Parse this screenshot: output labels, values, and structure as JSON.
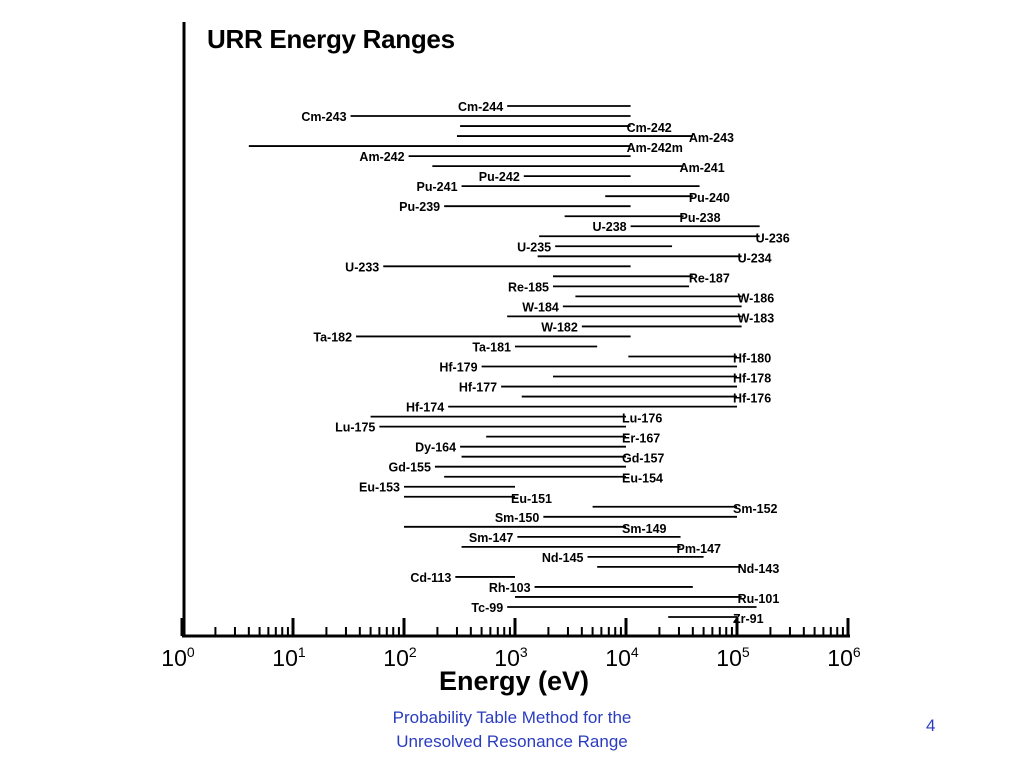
{
  "slide": {
    "title": "URR Energy Ranges",
    "footer_line1": "Probability Table Method for the",
    "footer_line2": "Unresolved Resonance Range",
    "page_number": "4"
  },
  "chart_data": {
    "type": "range-bar",
    "title": "URR Energy Ranges",
    "xlabel": "Energy (eV)",
    "xscale": "log",
    "xlim": [
      1,
      1000000
    ],
    "x_ticks": [
      {
        "base": "10",
        "exp": "0"
      },
      {
        "base": "10",
        "exp": "1"
      },
      {
        "base": "10",
        "exp": "2"
      },
      {
        "base": "10",
        "exp": "3"
      },
      {
        "base": "10",
        "exp": "4"
      },
      {
        "base": "10",
        "exp": "5"
      },
      {
        "base": "10",
        "exp": "6"
      }
    ],
    "ranges": [
      {
        "label": "Cm-244",
        "x0": 850,
        "x1": 11000,
        "label_side": "left"
      },
      {
        "label": "Cm-243",
        "x0": 33,
        "x1": 11000,
        "label_side": "left"
      },
      {
        "label": "Cm-242",
        "x0": 320,
        "x1": 11000,
        "label_side": "right"
      },
      {
        "label": "Am-243",
        "x0": 300,
        "x1": 40000,
        "label_side": "right"
      },
      {
        "label": "Am-242m",
        "x0": 4,
        "x1": 11000,
        "label_side": "right"
      },
      {
        "label": "Am-242",
        "x0": 110,
        "x1": 11000,
        "label_side": "left"
      },
      {
        "label": "Am-241",
        "x0": 180,
        "x1": 33000,
        "label_side": "right"
      },
      {
        "label": "Pu-242",
        "x0": 1200,
        "x1": 11000,
        "label_side": "left"
      },
      {
        "label": "Pu-241",
        "x0": 330,
        "x1": 46000,
        "label_side": "left"
      },
      {
        "label": "Pu-240",
        "x0": 6500,
        "x1": 40000,
        "label_side": "right"
      },
      {
        "label": "Pu-239",
        "x0": 230,
        "x1": 11000,
        "label_side": "left"
      },
      {
        "label": "Pu-238",
        "x0": 2800,
        "x1": 33000,
        "label_side": "right"
      },
      {
        "label": "U-238",
        "x0": 11000,
        "x1": 160000,
        "label_side": "left"
      },
      {
        "label": "U-236",
        "x0": 1650,
        "x1": 160000,
        "label_side": "right"
      },
      {
        "label": "U-235",
        "x0": 2300,
        "x1": 26000,
        "label_side": "left"
      },
      {
        "label": "U-234",
        "x0": 1600,
        "x1": 110000,
        "label_side": "right"
      },
      {
        "label": "U-233",
        "x0": 65,
        "x1": 11000,
        "label_side": "left"
      },
      {
        "label": "Re-187",
        "x0": 2200,
        "x1": 40000,
        "label_side": "right"
      },
      {
        "label": "Re-185",
        "x0": 2200,
        "x1": 37000,
        "label_side": "left"
      },
      {
        "label": "W-186",
        "x0": 3500,
        "x1": 110000,
        "label_side": "right"
      },
      {
        "label": "W-184",
        "x0": 2700,
        "x1": 110000,
        "label_side": "left"
      },
      {
        "label": "W-183",
        "x0": 850,
        "x1": 110000,
        "label_side": "right"
      },
      {
        "label": "W-182",
        "x0": 4000,
        "x1": 110000,
        "label_side": "left"
      },
      {
        "label": "Ta-182",
        "x0": 37,
        "x1": 11000,
        "label_side": "left"
      },
      {
        "label": "Ta-181",
        "x0": 1000,
        "x1": 5500,
        "label_side": "left"
      },
      {
        "label": "Hf-180",
        "x0": 10500,
        "x1": 100000,
        "label_side": "right"
      },
      {
        "label": "Hf-179",
        "x0": 500,
        "x1": 100000,
        "label_side": "left"
      },
      {
        "label": "Hf-178",
        "x0": 2200,
        "x1": 100000,
        "label_side": "right"
      },
      {
        "label": "Hf-177",
        "x0": 750,
        "x1": 100000,
        "label_side": "left"
      },
      {
        "label": "Hf-176",
        "x0": 1150,
        "x1": 100000,
        "label_side": "right"
      },
      {
        "label": "Hf-174",
        "x0": 250,
        "x1": 100000,
        "label_side": "left"
      },
      {
        "label": "Lu-176",
        "x0": 50,
        "x1": 10000,
        "label_side": "right"
      },
      {
        "label": "Lu-175",
        "x0": 60,
        "x1": 10000,
        "label_side": "left"
      },
      {
        "label": "Er-167",
        "x0": 550,
        "x1": 10000,
        "label_side": "right"
      },
      {
        "label": "Dy-164",
        "x0": 320,
        "x1": 10000,
        "label_side": "left"
      },
      {
        "label": "Gd-157",
        "x0": 330,
        "x1": 10000,
        "label_side": "right"
      },
      {
        "label": "Gd-155",
        "x0": 190,
        "x1": 10000,
        "label_side": "left"
      },
      {
        "label": "Eu-154",
        "x0": 230,
        "x1": 10000,
        "label_side": "right"
      },
      {
        "label": "Eu-153",
        "x0": 100,
        "x1": 1000,
        "label_side": "left"
      },
      {
        "label": "Eu-151",
        "x0": 100,
        "x1": 1000,
        "label_side": "right"
      },
      {
        "label": "Sm-152",
        "x0": 5000,
        "x1": 100000,
        "label_side": "right"
      },
      {
        "label": "Sm-150",
        "x0": 1800,
        "x1": 100000,
        "label_side": "left"
      },
      {
        "label": "Sm-149",
        "x0": 100,
        "x1": 10000,
        "label_side": "right"
      },
      {
        "label": "Sm-147",
        "x0": 1050,
        "x1": 31000,
        "label_side": "left"
      },
      {
        "label": "Pm-147",
        "x0": 330,
        "x1": 31000,
        "label_side": "right"
      },
      {
        "label": "Nd-145",
        "x0": 4500,
        "x1": 50000,
        "label_side": "left"
      },
      {
        "label": "Nd-143",
        "x0": 5500,
        "x1": 110000,
        "label_side": "right"
      },
      {
        "label": "Cd-113",
        "x0": 290,
        "x1": 1000,
        "label_side": "left"
      },
      {
        "label": "Rh-103",
        "x0": 1500,
        "x1": 40000,
        "label_side": "left"
      },
      {
        "label": "Ru-101",
        "x0": 1000,
        "x1": 110000,
        "label_side": "right"
      },
      {
        "label": "Tc-99",
        "x0": 850,
        "x1": 150000,
        "label_side": "left"
      },
      {
        "label": "Zr-91",
        "x0": 24000,
        "x1": 100000,
        "label_side": "right"
      }
    ]
  }
}
